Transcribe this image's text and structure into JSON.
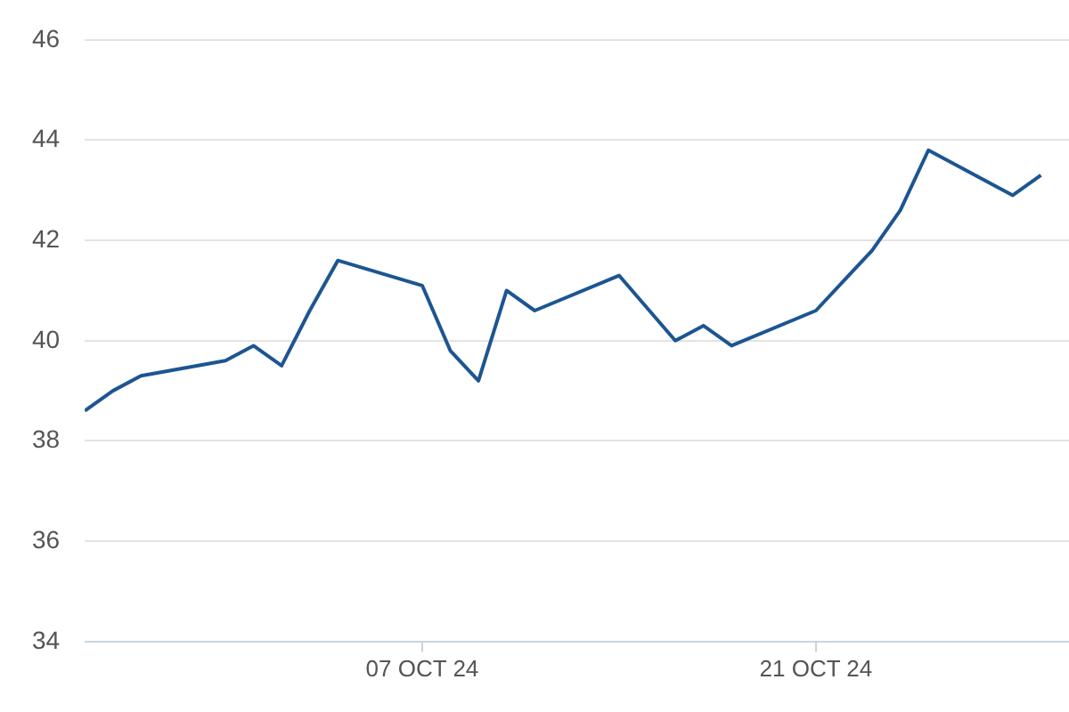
{
  "chart_data": {
    "type": "line",
    "x": [
      "--09-25",
      "--09-26",
      "--09-27",
      "--09-30",
      "--10-01",
      "--10-02",
      "--10-03",
      "--10-04",
      "--10-07",
      "--10-08",
      "--10-09",
      "--10-10",
      "--10-11",
      "--10-14",
      "--10-16",
      "--10-17",
      "--10-18",
      "--10-21",
      "--10-22",
      "--10-23",
      "--10-24",
      "--10-25",
      "--10-28",
      "--10-29"
    ],
    "series": [
      {
        "color": "#1d5592",
        "values": [
          38.6,
          39.0,
          39.3,
          39.6,
          39.9,
          39.5,
          40.6,
          41.6,
          41.1,
          39.8,
          39.2,
          41.0,
          40.6,
          41.3,
          40.0,
          40.3,
          39.9,
          40.6,
          41.2,
          41.8,
          42.6,
          43.8,
          42.9,
          43.3
        ]
      }
    ],
    "xlim": [
      "--09-25",
      "--10-30"
    ],
    "xticks": [
      {
        "value": "--10-07",
        "label": "07 OCT 24"
      },
      {
        "value": "--10-21",
        "label": "21 OCT 24"
      }
    ],
    "ylim": [
      34,
      46
    ],
    "yticks": [
      34,
      36,
      38,
      40,
      42,
      44,
      46
    ],
    "grid": "y",
    "legend": false,
    "marker": "none",
    "line_style": "solid"
  }
}
